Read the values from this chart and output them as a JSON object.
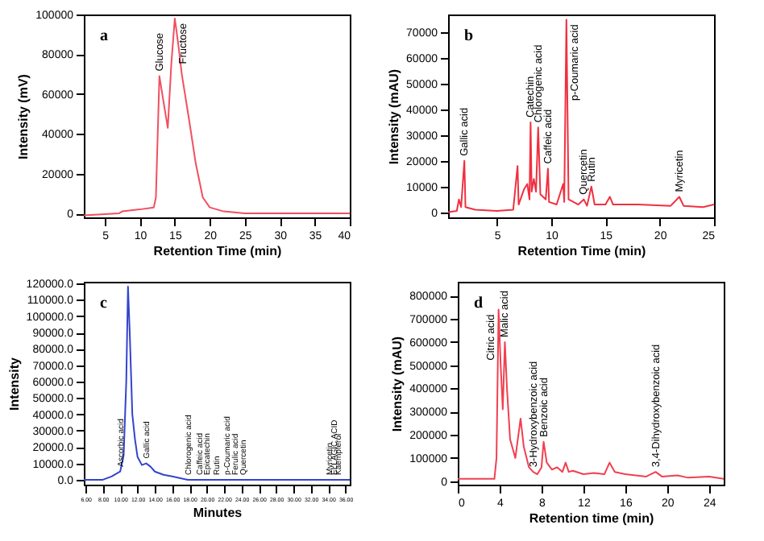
{
  "chart_data": [
    {
      "type": "line",
      "title": "a",
      "xlabel": "Retention Time (min)",
      "ylabel": "Intensity (mV)",
      "xlim": [
        2,
        40
      ],
      "xticks": [
        5,
        10,
        15,
        20,
        25,
        30,
        35,
        40
      ],
      "ylim": [
        -2000,
        100000
      ],
      "yticks": [
        0,
        20000,
        40000,
        60000,
        80000,
        100000
      ],
      "x": [
        2,
        7,
        7.5,
        10,
        12,
        12.3,
        12.8,
        13.3,
        14,
        14.5,
        15,
        15.5,
        16,
        17,
        18,
        19,
        20,
        22,
        25,
        30,
        40
      ],
      "series": [
        {
          "color": "#f05060",
          "values": [
            -1000,
            0,
            1000,
            2000,
            3000,
            8000,
            69000,
            58000,
            43000,
            75000,
            98000,
            85000,
            70000,
            48000,
            25000,
            8000,
            3000,
            1000,
            0,
            0,
            0
          ]
        }
      ],
      "annotations": [
        {
          "text": "Glucose",
          "x": 12.8,
          "y": 69000
        },
        {
          "text": "Fructose",
          "x": 15,
          "y": 98000
        }
      ]
    },
    {
      "type": "line",
      "title": "b",
      "xlabel": "Retention Time (min)",
      "ylabel": "Intensity (mAU)",
      "xlim": [
        0.5,
        25
      ],
      "xticks": [
        5,
        10,
        15,
        20,
        25
      ],
      "ylim": [
        -2000,
        77000
      ],
      "yticks": [
        0,
        10000,
        20000,
        30000,
        40000,
        50000,
        60000,
        70000
      ],
      "x": [
        0.5,
        1.3,
        1.5,
        1.7,
        2,
        2.1,
        3,
        5,
        6.5,
        6.9,
        7,
        7.5,
        7.8,
        8,
        8.1,
        8.2,
        8.4,
        8.6,
        8.8,
        9,
        9.5,
        9.7,
        9.8,
        10.5,
        11.1,
        11.2,
        11.4,
        11.6,
        12.5,
        13,
        13.3,
        13.7,
        14,
        15,
        15.4,
        15.7,
        18,
        21,
        21.8,
        22.2,
        24,
        25
      ],
      "series": [
        {
          "color": "#f03040",
          "values": [
            0,
            500,
            5000,
            2000,
            20000,
            2000,
            1000,
            500,
            1000,
            18000,
            3000,
            9000,
            11000,
            5000,
            35000,
            8000,
            13000,
            8000,
            33000,
            7000,
            5000,
            17000,
            4000,
            3000,
            11000,
            4000,
            75000,
            5000,
            3000,
            5000,
            2500,
            10000,
            3000,
            3000,
            6000,
            3000,
            3000,
            2500,
            6000,
            2500,
            2000,
            3000
          ]
        }
      ],
      "annotations": [
        {
          "text": "Gallic acid",
          "x": 2,
          "y": 20000
        },
        {
          "text": "Catechin",
          "x": 8.1,
          "y": 35000
        },
        {
          "text": "Chlorogenic acid",
          "x": 8.8,
          "y": 33000
        },
        {
          "text": "Caffeic acid",
          "x": 9.7,
          "y": 17000
        },
        {
          "text": "p-Coumaric acid",
          "x": 11.4,
          "y": 75000
        },
        {
          "text": "Quercetin",
          "x": 13,
          "y": 5000
        },
        {
          "text": "Rutin",
          "x": 13.7,
          "y": 10000
        },
        {
          "text": "Myricetin",
          "x": 21.8,
          "y": 6000
        }
      ]
    },
    {
      "type": "line",
      "title": "c",
      "xlabel": "Minutes",
      "ylabel": "Intensity",
      "xlim": [
        5.8,
        36.5
      ],
      "xticks": [
        {
          "value": 6,
          "label": "6.00"
        },
        {
          "value": 8,
          "label": "8.00"
        },
        {
          "value": 10,
          "label": "10.00"
        },
        {
          "value": 12,
          "label": "12.00"
        },
        {
          "value": 14,
          "label": "14.00"
        },
        {
          "value": 16,
          "label": "16.00"
        },
        {
          "value": 18,
          "label": "18.00"
        },
        {
          "value": 20,
          "label": "20.00"
        },
        {
          "value": 22,
          "label": "22.00"
        },
        {
          "value": 24,
          "label": "24.00"
        },
        {
          "value": 26,
          "label": "26.00"
        },
        {
          "value": 28,
          "label": "28.00"
        },
        {
          "value": 30,
          "label": "30.00"
        },
        {
          "value": 32,
          "label": "32.00"
        },
        {
          "value": 34,
          "label": "34.00"
        },
        {
          "value": 36,
          "label": "36.00"
        }
      ],
      "ylim": [
        -3000,
        121000
      ],
      "yticks": [
        {
          "value": 0,
          "label": "0.0"
        },
        {
          "value": 10000,
          "label": "10000.0"
        },
        {
          "value": 20000,
          "label": "20000.0"
        },
        {
          "value": 30000,
          "label": "30000.0"
        },
        {
          "value": 40000,
          "label": "40000.0"
        },
        {
          "value": 50000,
          "label": "50000.0"
        },
        {
          "value": 60000,
          "label": "60000.0"
        },
        {
          "value": 70000,
          "label": "70000.0"
        },
        {
          "value": 80000,
          "label": "80000.0"
        },
        {
          "value": 90000,
          "label": "90000.0"
        },
        {
          "value": 100000,
          "label": "100000.0"
        },
        {
          "value": 110000,
          "label": "110000.0"
        },
        {
          "value": 120000,
          "label": "120000.0"
        }
      ],
      "x": [
        5.8,
        8,
        9,
        10,
        10.4,
        10.7,
        10.9,
        11.1,
        11.4,
        11.7,
        12,
        12.5,
        13,
        13.5,
        14,
        15,
        16,
        17.8,
        19.1,
        19.9,
        21.1,
        22.3,
        23.2,
        24.1,
        34.1,
        34.6,
        35.1,
        36.5
      ],
      "series": [
        {
          "color": "#3344cc",
          "values": [
            0,
            0,
            2000,
            5000,
            15000,
            60000,
            118000,
            90000,
            40000,
            25000,
            14000,
            9000,
            10000,
            8000,
            5000,
            3000,
            2000,
            0,
            0,
            0,
            0,
            0,
            0,
            0,
            0,
            0,
            0,
            0
          ]
        }
      ],
      "annotations": [
        {
          "text": "Ascorbic acid",
          "x": 10,
          "y": 5000
        },
        {
          "text": "Gallic acid",
          "x": 13,
          "y": 10000
        },
        {
          "text": "Chlorogenic acid",
          "x": 17.8,
          "y": 0
        },
        {
          "text": "Caffeic acid",
          "x": 19.1,
          "y": 0
        },
        {
          "text": "Epicatechin",
          "x": 19.9,
          "y": 0
        },
        {
          "text": "Rutin",
          "x": 21.1,
          "y": 0
        },
        {
          "text": "p-Coumaric acid",
          "x": 22.3,
          "y": 0
        },
        {
          "text": "Ferulic acid",
          "x": 23.2,
          "y": 0
        },
        {
          "text": "Quercetin",
          "x": 24.1,
          "y": 0
        },
        {
          "text": "Myricetin",
          "x": 34.1,
          "y": 0
        },
        {
          "text": "ELLAGIC ACID",
          "x": 34.6,
          "y": 0
        },
        {
          "text": "Kaempferol",
          "x": 35.1,
          "y": 0
        }
      ]
    },
    {
      "type": "line",
      "title": "d",
      "xlabel": "Retention time (min)",
      "ylabel": "Intensity (mAU)",
      "xlim": [
        0,
        25.4
      ],
      "xticks": [
        0,
        4,
        8,
        12,
        16,
        20,
        24
      ],
      "ylim": [
        -15000,
        860000
      ],
      "yticks": [
        0,
        100000,
        200000,
        300000,
        400000,
        500000,
        600000,
        700000,
        800000
      ],
      "x": [
        0,
        3.5,
        3.7,
        3.9,
        4.1,
        4.3,
        4.5,
        4.7,
        5,
        5.5,
        6,
        6.3,
        6.8,
        7.2,
        7.6,
        8,
        8.2,
        8.5,
        9,
        9.5,
        10,
        10.3,
        10.6,
        11,
        12,
        13,
        14,
        14.5,
        15,
        16,
        18,
        18.9,
        19.5,
        21,
        22,
        24,
        25.4
      ],
      "series": [
        {
          "color": "#f04050",
          "values": [
            10000,
            10000,
            100000,
            740000,
            500000,
            310000,
            600000,
            400000,
            180000,
            100000,
            270000,
            150000,
            60000,
            40000,
            30000,
            60000,
            170000,
            80000,
            50000,
            60000,
            40000,
            80000,
            40000,
            45000,
            30000,
            35000,
            30000,
            80000,
            40000,
            30000,
            20000,
            40000,
            20000,
            25000,
            15000,
            20000,
            10000
          ]
        }
      ],
      "annotations": [
        {
          "text": "Citric acid",
          "x": 3.9,
          "y": 740000
        },
        {
          "text": "Malic acid",
          "x": 4.5,
          "y": 600000
        },
        {
          "text": "3-Hydroxybenzoic acid",
          "x": 7.2,
          "y": 40000
        },
        {
          "text": "Benzoic acid",
          "x": 8.2,
          "y": 170000
        },
        {
          "text": "3,4-Dihydroxybenzoic acid",
          "x": 18.9,
          "y": 40000
        }
      ]
    }
  ]
}
